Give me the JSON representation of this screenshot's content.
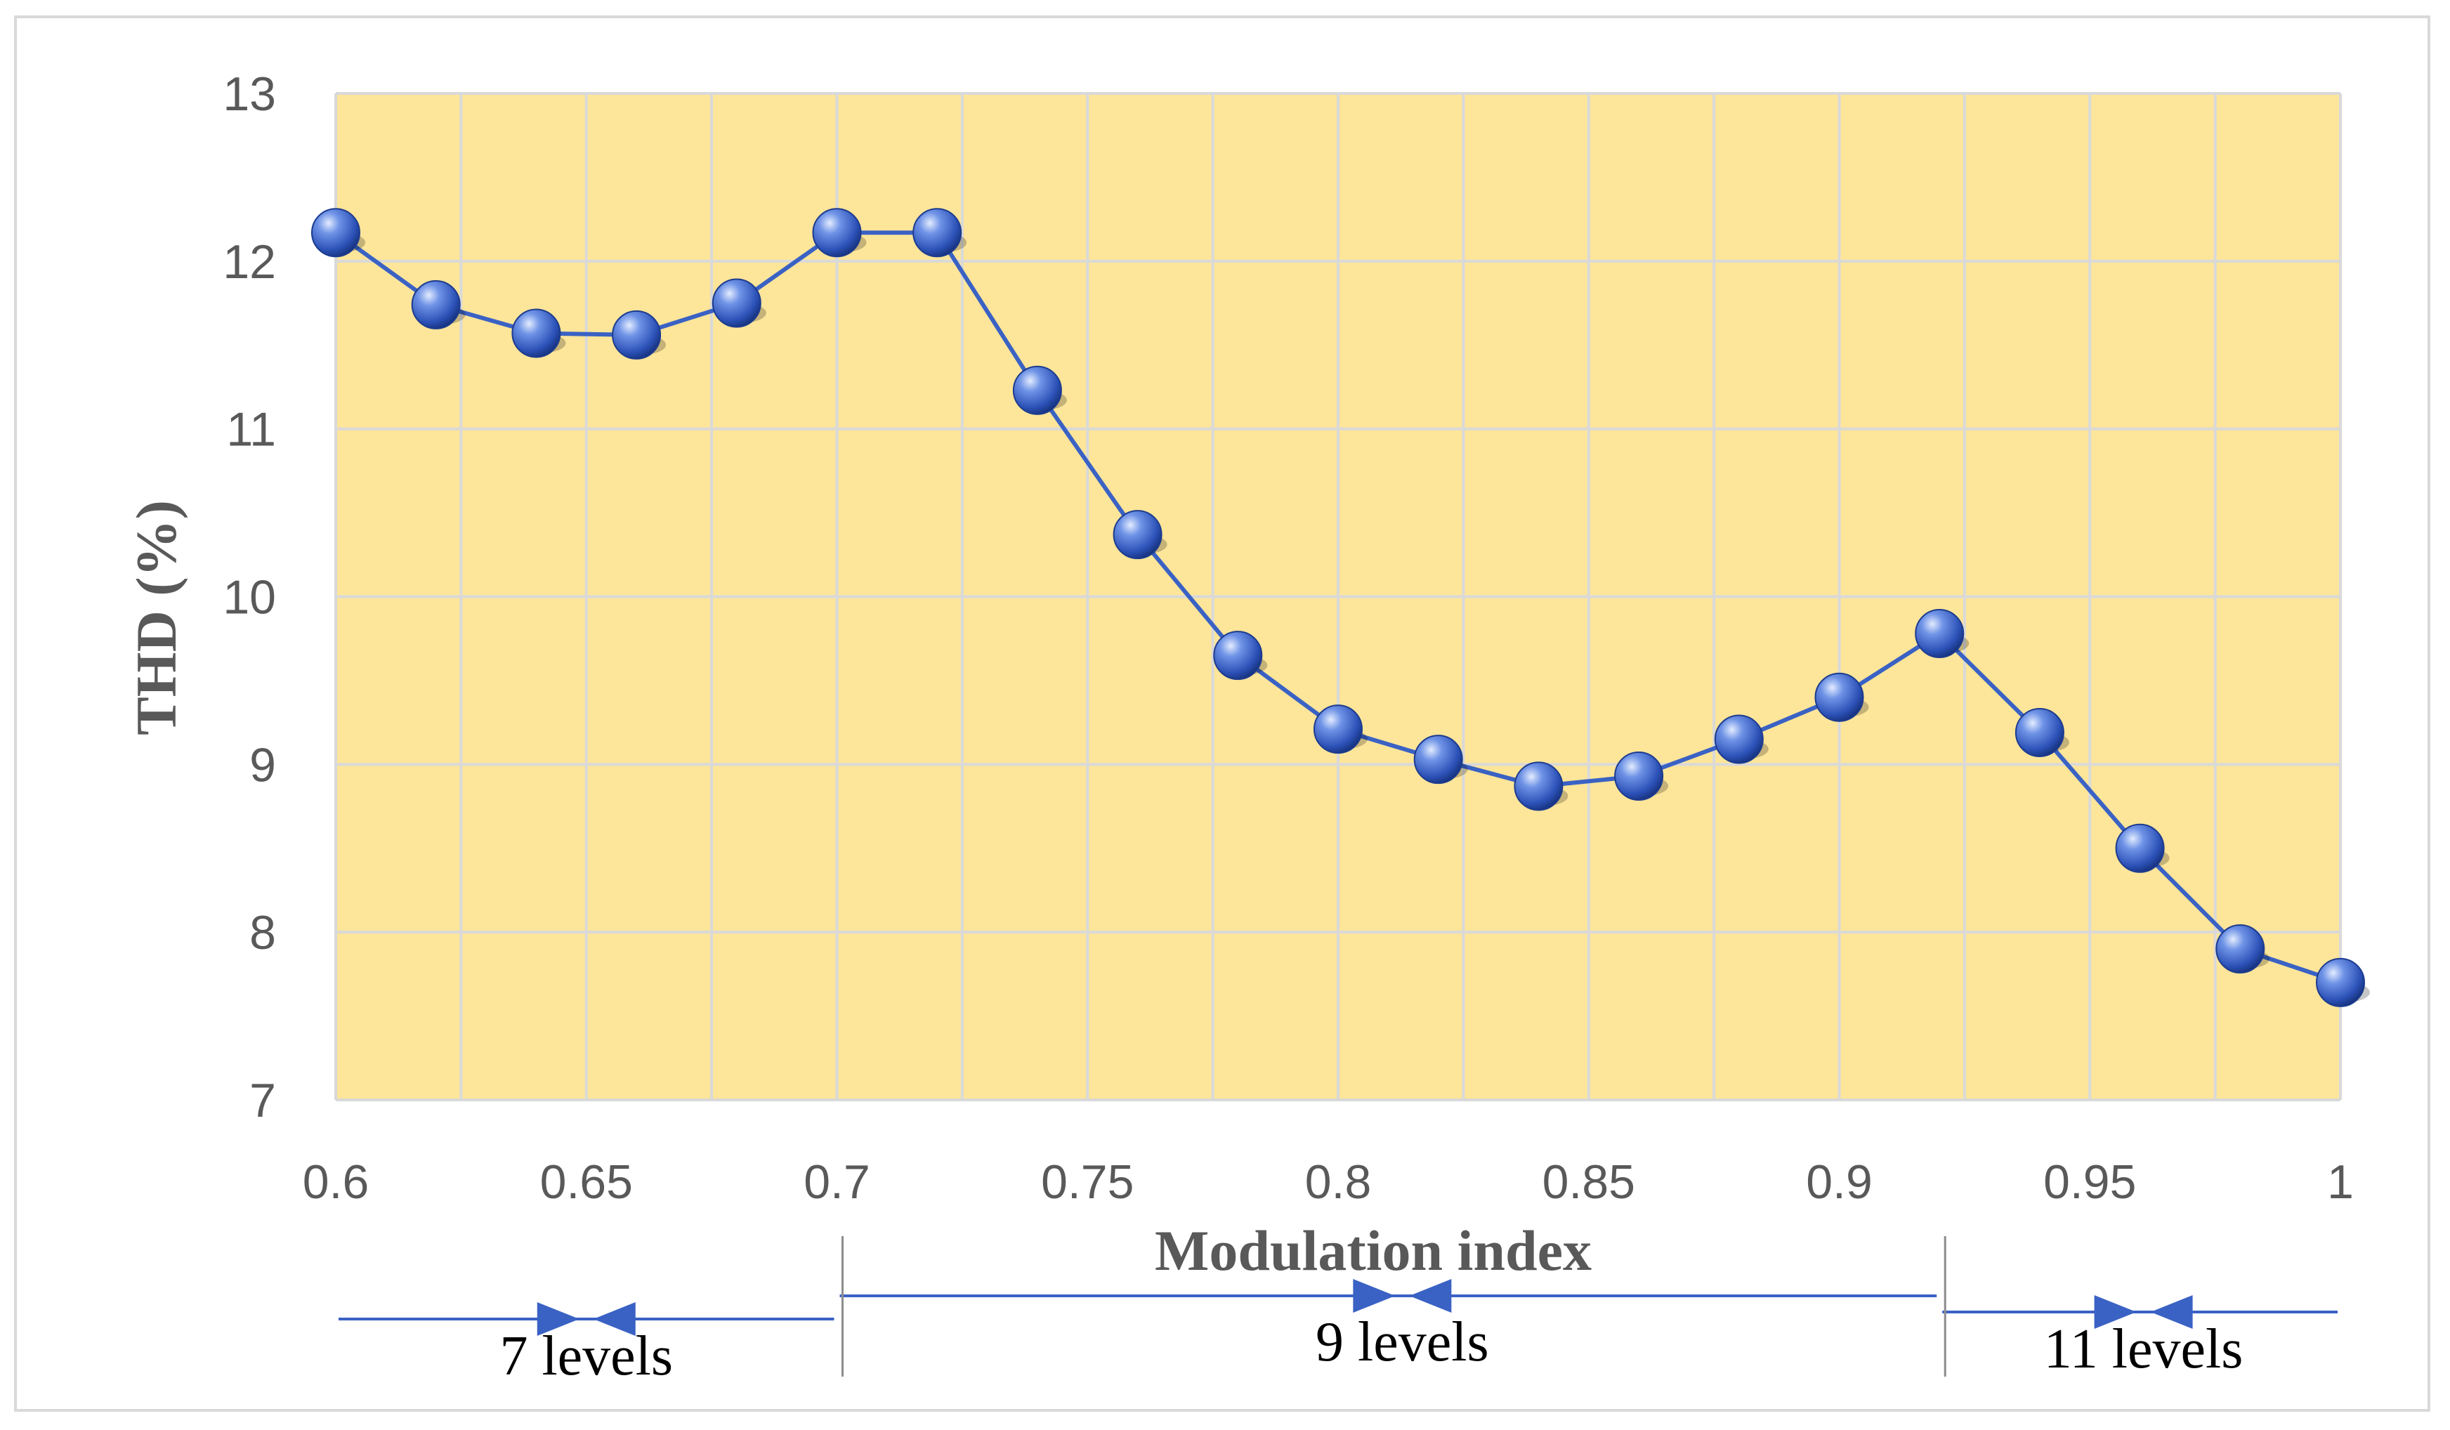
{
  "chart_data": {
    "type": "line",
    "title": "",
    "xlabel": "Modulation index",
    "ylabel": "THD (%)",
    "xlim": [
      0.6,
      1.0
    ],
    "ylim": [
      7,
      13
    ],
    "x_ticks": [
      0.6,
      0.65,
      0.7,
      0.75,
      0.8,
      0.85,
      0.9,
      0.95,
      1.0
    ],
    "x_tick_labels": [
      "0.6",
      "0.65",
      "0.7",
      "0.75",
      "0.8",
      "0.85",
      "0.9",
      "0.95",
      "1"
    ],
    "y_ticks": [
      7,
      8,
      9,
      10,
      11,
      12,
      13
    ],
    "y_tick_labels": [
      "7",
      "8",
      "9",
      "10",
      "11",
      "12",
      "13"
    ],
    "grid": true,
    "legend": "none",
    "plot_background": "#fde59a",
    "grid_color": "#d9d9d9",
    "series": [
      {
        "color": "#3a62c4",
        "x": [
          0.6,
          0.62,
          0.64,
          0.66,
          0.68,
          0.7,
          0.72,
          0.74,
          0.76,
          0.78,
          0.8,
          0.82,
          0.84,
          0.86,
          0.88,
          0.9,
          0.92,
          0.94,
          0.96,
          0.98,
          1.0
        ],
        "y": [
          12.17,
          11.74,
          11.57,
          11.56,
          11.75,
          12.17,
          12.17,
          11.23,
          10.37,
          9.65,
          9.21,
          9.03,
          8.87,
          8.93,
          9.15,
          9.4,
          9.78,
          9.19,
          8.5,
          7.9,
          7.7
        ]
      }
    ],
    "annotations": [
      {
        "label": "7 levels",
        "x_start": 0.6,
        "x_end": 0.7
      },
      {
        "label": "9 levels",
        "x_start": 0.7,
        "x_end": 0.92
      },
      {
        "label": "11 levels",
        "x_start": 0.92,
        "x_end": 1.0
      }
    ]
  }
}
